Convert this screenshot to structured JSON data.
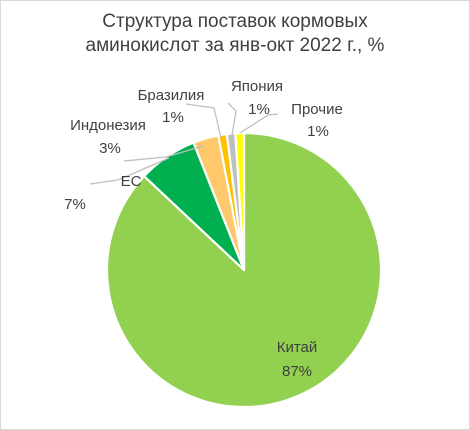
{
  "chart_data": {
    "type": "pie",
    "title_lines": [
      "Структура поставок кормовых",
      "аминокислот за янв-окт 2022 г., %"
    ],
    "slices": [
      {
        "label": "Китай",
        "value": 87,
        "display": "87%",
        "color": "#92d050"
      },
      {
        "label": "ЕС",
        "value": 7,
        "display": "7%",
        "color": "#00b050"
      },
      {
        "label": "Индонезия",
        "value": 3,
        "display": "3%",
        "color": "#ffc96b"
      },
      {
        "label": "Бразилия",
        "value": 1,
        "display": "1%",
        "color": "#ffc000"
      },
      {
        "label": "Япония",
        "value": 1,
        "display": "1%",
        "color": "#bfbfbf"
      },
      {
        "label": "Прочие",
        "value": 1,
        "display": "1%",
        "color": "#ffff00"
      }
    ],
    "legend": "none",
    "start_angle": "12 o'clock",
    "direction": "clockwise"
  }
}
